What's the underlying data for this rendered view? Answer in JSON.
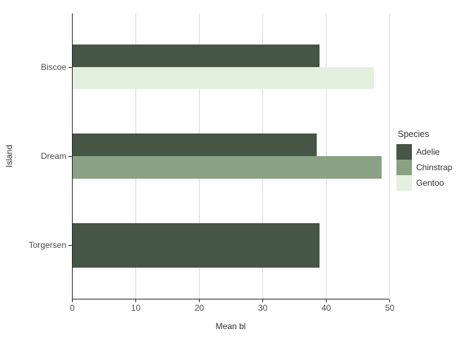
{
  "chart_data": {
    "type": "bar",
    "orientation": "horizontal",
    "xlabel": "Mean bl",
    "ylabel": "Island",
    "legend_title": "Species",
    "legend_position": "right",
    "grid": "vertical-major-only",
    "categories": [
      "Biscoe",
      "Dream",
      "Torgersen"
    ],
    "xticks": [
      0,
      10,
      20,
      30,
      40,
      50
    ],
    "xlim": [
      0,
      50
    ],
    "series": [
      {
        "name": "Adelie",
        "color": "#465645",
        "values": [
          39.0,
          38.5,
          39.0
        ]
      },
      {
        "name": "Chinstrap",
        "color": "#8AA185",
        "values": [
          null,
          48.8,
          null
        ]
      },
      {
        "name": "Gentoo",
        "color": "#E4F0DE",
        "values": [
          47.5,
          null,
          null
        ]
      }
    ]
  },
  "colors": {
    "background": "#FFFFFF",
    "axis_line": "#262626",
    "grid_line": "#D9D9D9",
    "tick_label": "#4D4D4D",
    "axis_title": "#333333",
    "legend_text": "#333333"
  }
}
